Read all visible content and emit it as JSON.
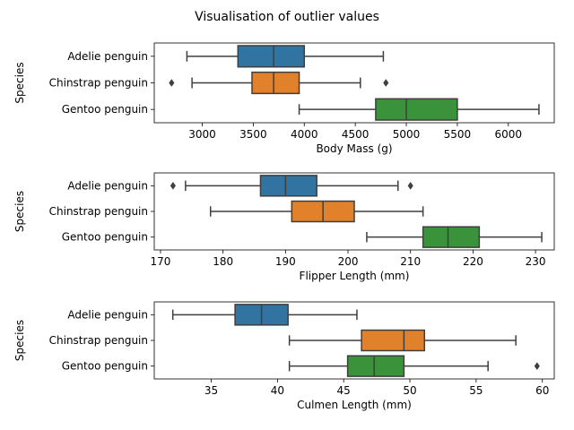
{
  "title": "Visualisation of outlier values",
  "colors": {
    "adelie": "#3274a1",
    "chinstrap": "#e1812c",
    "gentoo": "#3a923a",
    "line": "#3f3f3f"
  },
  "chart_data": [
    {
      "type": "box",
      "xlabel": "Body Mass (g)",
      "ylabel": "Species",
      "xlim": [
        2530,
        6450
      ],
      "xticks": [
        3000,
        3500,
        4000,
        4500,
        5000,
        5500,
        6000
      ],
      "categories": [
        "Adelie penguin",
        "Chinstrap penguin",
        "Gentoo penguin"
      ],
      "boxes": [
        {
          "name": "Adelie penguin",
          "whisker_low": 2850,
          "q1": 3350,
          "median": 3700,
          "q3": 4000,
          "whisker_high": 4775,
          "outliers": []
        },
        {
          "name": "Chinstrap penguin",
          "whisker_low": 2900,
          "q1": 3488,
          "median": 3700,
          "q3": 3950,
          "whisker_high": 4550,
          "outliers": [
            2700,
            4800
          ]
        },
        {
          "name": "Gentoo penguin",
          "whisker_low": 3950,
          "q1": 4700,
          "median": 5000,
          "q3": 5500,
          "whisker_high": 6300,
          "outliers": []
        }
      ]
    },
    {
      "type": "box",
      "xlabel": "Flipper Length (mm)",
      "ylabel": "Species",
      "xlim": [
        169,
        233
      ],
      "xticks": [
        170,
        180,
        190,
        200,
        210,
        220,
        230
      ],
      "categories": [
        "Adelie penguin",
        "Chinstrap penguin",
        "Gentoo penguin"
      ],
      "boxes": [
        {
          "name": "Adelie penguin",
          "whisker_low": 174,
          "q1": 186,
          "median": 190,
          "q3": 195,
          "whisker_high": 208,
          "outliers": [
            172,
            210
          ]
        },
        {
          "name": "Chinstrap penguin",
          "whisker_low": 178,
          "q1": 191,
          "median": 196,
          "q3": 201,
          "whisker_high": 212,
          "outliers": []
        },
        {
          "name": "Gentoo penguin",
          "whisker_low": 203,
          "q1": 212,
          "median": 216,
          "q3": 221,
          "whisker_high": 231,
          "outliers": []
        }
      ]
    },
    {
      "type": "box",
      "xlabel": "Culmen Length (mm)",
      "ylabel": "Species",
      "xlim": [
        30.7,
        60.9
      ],
      "xticks": [
        35,
        40,
        45,
        50,
        55,
        60
      ],
      "categories": [
        "Adelie penguin",
        "Chinstrap penguin",
        "Gentoo penguin"
      ],
      "boxes": [
        {
          "name": "Adelie penguin",
          "whisker_low": 32.1,
          "q1": 36.8,
          "median": 38.8,
          "q3": 40.8,
          "whisker_high": 46.0,
          "outliers": []
        },
        {
          "name": "Chinstrap penguin",
          "whisker_low": 40.9,
          "q1": 46.35,
          "median": 49.55,
          "q3": 51.1,
          "whisker_high": 58.0,
          "outliers": []
        },
        {
          "name": "Gentoo penguin",
          "whisker_low": 40.9,
          "q1": 45.3,
          "median": 47.3,
          "q3": 49.55,
          "whisker_high": 55.9,
          "outliers": [
            59.6
          ]
        }
      ]
    }
  ]
}
